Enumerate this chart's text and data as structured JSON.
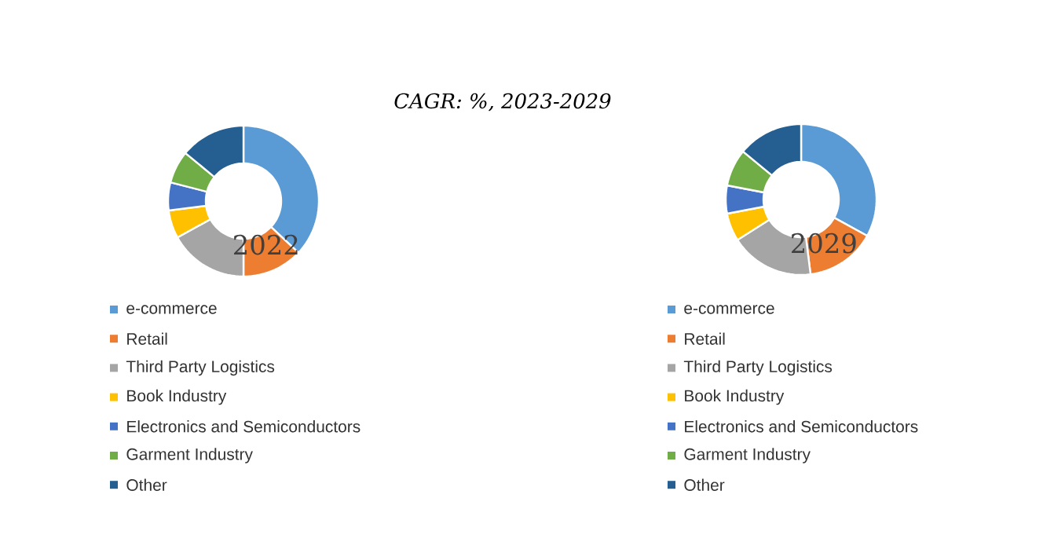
{
  "chart_data": [
    {
      "type": "donut",
      "title": "CAGR:     %, 2023-2029",
      "annotations": [
        "2022"
      ],
      "legend": "bottom",
      "categories": [
        "e-commerce",
        "Retail",
        "Third Party Logistics",
        "Book Industry",
        "Electronics and Semiconductors",
        "Garment Industry",
        "Other"
      ],
      "values": [
        37,
        13,
        17,
        6,
        6,
        7,
        14
      ],
      "colors": [
        "#5b9bd5",
        "#ed7d31",
        "#a5a5a5",
        "#ffc000",
        "#4472c4",
        "#70ad47",
        "#255e91"
      ]
    },
    {
      "type": "donut",
      "annotations": [
        "2029"
      ],
      "legend": "bottom",
      "categories": [
        "e-commerce",
        "Retail",
        "Third Party Logistics",
        "Book Industry",
        "Electronics and Semiconductors",
        "Garment Industry",
        "Other"
      ],
      "values": [
        33,
        15,
        18,
        6,
        6,
        8,
        14
      ],
      "colors": [
        "#5b9bd5",
        "#ed7d31",
        "#a5a5a5",
        "#ffc000",
        "#4472c4",
        "#70ad47",
        "#255e91"
      ]
    }
  ]
}
